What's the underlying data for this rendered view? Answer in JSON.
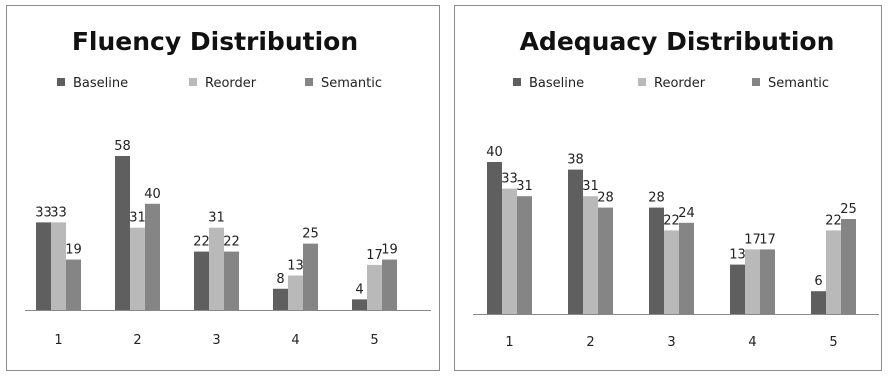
{
  "colors": {
    "baseline": "#5f5f5f",
    "reorder": "#b9b9b9",
    "semantic": "#858585",
    "axis": "#8a8a8a"
  },
  "chart_data": [
    {
      "type": "bar",
      "title": "Fluency Distribution",
      "categories": [
        "1",
        "2",
        "3",
        "4",
        "5"
      ],
      "series": [
        {
          "name": "Baseline",
          "values": [
            33,
            58,
            22,
            8,
            4
          ]
        },
        {
          "name": "Reorder",
          "values": [
            33,
            31,
            31,
            13,
            17
          ]
        },
        {
          "name": "Semantic",
          "values": [
            19,
            40,
            22,
            25,
            19
          ]
        }
      ],
      "xlabel": "",
      "ylabel": "",
      "ylim": [
        0,
        60
      ],
      "grid": false,
      "legend": "top"
    },
    {
      "type": "bar",
      "title": "Adequacy Distribution",
      "categories": [
        "1",
        "2",
        "3",
        "4",
        "5"
      ],
      "series": [
        {
          "name": "Baseline",
          "values": [
            40,
            38,
            28,
            13,
            6
          ]
        },
        {
          "name": "Reorder",
          "values": [
            33,
            31,
            22,
            17,
            22
          ]
        },
        {
          "name": "Semantic",
          "values": [
            31,
            28,
            24,
            17,
            25
          ]
        }
      ],
      "xlabel": "",
      "ylabel": "",
      "ylim": [
        0,
        40
      ],
      "grid": false,
      "legend": "top"
    }
  ]
}
